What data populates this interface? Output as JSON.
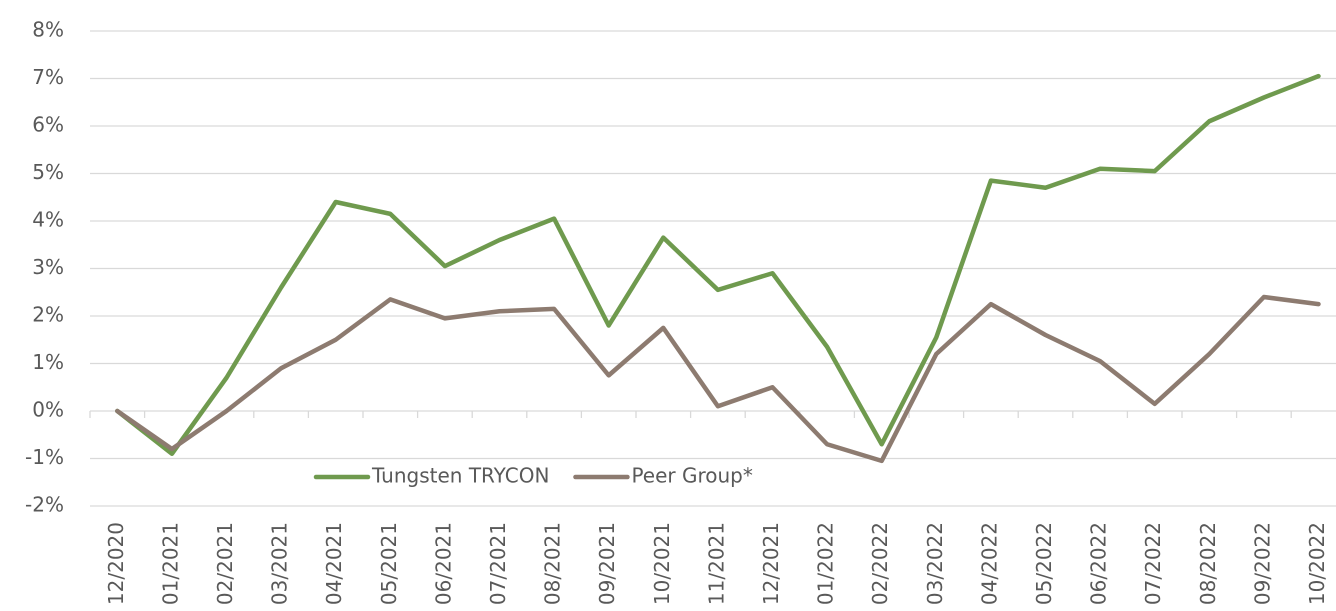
{
  "chart_data": {
    "type": "line",
    "categories": [
      "12/2020",
      "01/2021",
      "02/2021",
      "03/2021",
      "04/2021",
      "05/2021",
      "06/2021",
      "07/2021",
      "08/2021",
      "09/2021",
      "10/2021",
      "11/2021",
      "12/2021",
      "01/2022",
      "02/2022",
      "03/2022",
      "04/2022",
      "05/2022",
      "06/2022",
      "07/2022",
      "08/2022",
      "09/2022",
      "10/2022"
    ],
    "series": [
      {
        "name": "Tungsten TRYCON",
        "color": "#6f9a4e",
        "values": [
          0,
          -0.9,
          0.7,
          2.6,
          4.4,
          4.15,
          3.05,
          3.6,
          4.05,
          1.8,
          3.65,
          2.55,
          2.9,
          1.35,
          -0.7,
          1.55,
          4.85,
          4.7,
          5.1,
          5.05,
          6.1,
          6.6,
          7.05
        ]
      },
      {
        "name": "Peer Group*",
        "color": "#8d7b70",
        "values": [
          0,
          -0.8,
          0.0,
          0.9,
          1.5,
          2.35,
          1.95,
          2.1,
          2.15,
          0.75,
          1.75,
          0.1,
          0.5,
          -0.7,
          -1.05,
          1.2,
          2.25,
          1.6,
          1.05,
          0.15,
          1.2,
          2.4,
          2.25
        ]
      }
    ],
    "ylim": [
      -2,
      8
    ],
    "yticks": [
      {
        "value": -2,
        "label": "-2%"
      },
      {
        "value": -1,
        "label": "-1%"
      },
      {
        "value": 0,
        "label": "0%"
      },
      {
        "value": 1,
        "label": "1%"
      },
      {
        "value": 2,
        "label": "2%"
      },
      {
        "value": 3,
        "label": "3%"
      },
      {
        "value": 4,
        "label": "4%"
      },
      {
        "value": 5,
        "label": "5%"
      },
      {
        "value": 6,
        "label": "6%"
      },
      {
        "value": 7,
        "label": "7%"
      },
      {
        "value": 8,
        "label": "8%"
      }
    ],
    "grid": true
  }
}
